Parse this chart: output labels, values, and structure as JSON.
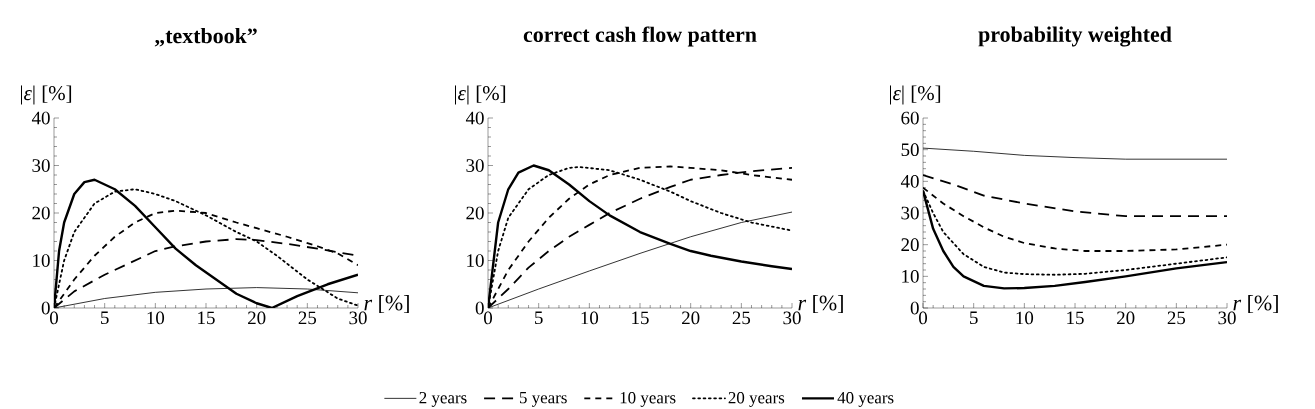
{
  "chart_data": [
    {
      "type": "line",
      "title": "„textbook”",
      "xlabel": "*r* [%]",
      "ylabel": "|*ε*| [%]",
      "xlim": [
        0,
        30
      ],
      "ylim": [
        0,
        40
      ],
      "xticks": [
        0,
        5,
        10,
        15,
        20,
        25,
        30
      ],
      "yticks": [
        0,
        10,
        20,
        30,
        40
      ],
      "series": [
        {
          "color": "#000000",
          "line_style": "solid",
          "x": [
            0,
            5,
            10,
            15,
            20,
            25,
            30
          ],
          "values": [
            0,
            2,
            3.3,
            4,
            4.3,
            4,
            3.2
          ]
        },
        {
          "color": "#000000",
          "line_style": "dashed",
          "x": [
            0,
            2,
            5,
            8,
            10,
            12,
            15,
            18,
            20,
            23,
            26,
            30
          ],
          "values": [
            0,
            3.5,
            7,
            10,
            12,
            13,
            14,
            14.5,
            14.3,
            13.5,
            12.5,
            11
          ]
        },
        {
          "color": "#000000",
          "line_style": "dashed",
          "x": [
            0,
            2,
            4,
            6,
            8,
            10,
            12,
            15,
            18,
            20,
            23,
            26,
            28,
            30
          ],
          "values": [
            0,
            6,
            11,
            15,
            18,
            20,
            20.5,
            20,
            18,
            16.8,
            15,
            13,
            11.5,
            9
          ]
        },
        {
          "color": "#000000",
          "line_style": "dotted",
          "x": [
            0,
            1,
            2,
            4,
            6,
            8,
            10,
            12,
            15,
            18,
            20,
            22,
            25,
            28,
            30
          ],
          "values": [
            0,
            10,
            16,
            22,
            24.5,
            25,
            24,
            22.5,
            19.5,
            16,
            14,
            11,
            6,
            2,
            0.5
          ]
        },
        {
          "color": "#000000",
          "line_style": "solid",
          "x": [
            0,
            0.5,
            1,
            2,
            3,
            4,
            6,
            8,
            10,
            12,
            14,
            16,
            18,
            20,
            21.5,
            24,
            27,
            30
          ],
          "values": [
            0,
            12,
            18,
            24,
            26.5,
            27,
            25,
            21.5,
            17,
            12.5,
            9,
            6,
            3,
            1,
            0,
            2.5,
            5,
            7
          ]
        }
      ]
    },
    {
      "type": "line",
      "title": "correct cash flow pattern",
      "xlabel": "*r* [%]",
      "ylabel": "|*ε*| [%]",
      "xlim": [
        0,
        30
      ],
      "ylim": [
        0,
        40
      ],
      "xticks": [
        0,
        5,
        10,
        15,
        20,
        25,
        30
      ],
      "yticks": [
        0,
        10,
        20,
        30,
        40
      ],
      "legend": "bottom",
      "series": [
        {
          "name": "2 years",
          "color": "#000000",
          "line_style": "solid",
          "x": [
            0,
            5,
            10,
            15,
            20,
            25,
            30
          ],
          "values": [
            0,
            4,
            7.8,
            11.5,
            15,
            18,
            20.2
          ]
        },
        {
          "name": "5 years",
          "color": "#000000",
          "line_style": "dashed",
          "x": [
            0,
            2,
            4,
            6,
            8,
            10,
            12,
            15,
            18,
            20,
            23,
            26,
            30
          ],
          "values": [
            0,
            4,
            8.5,
            12,
            15,
            17.5,
            20,
            23,
            25.5,
            27,
            28,
            28.8,
            29.5
          ]
        },
        {
          "name": "10 years",
          "color": "#000000",
          "line_style": "dashed",
          "x": [
            0,
            2,
            4,
            6,
            8,
            10,
            12,
            15,
            18,
            20,
            23,
            26,
            30
          ],
          "values": [
            0,
            8,
            14,
            19,
            23,
            26,
            28,
            29.5,
            29.8,
            29.5,
            29,
            28,
            27
          ]
        },
        {
          "name": "20 years",
          "color": "#000000",
          "line_style": "dotted",
          "x": [
            0,
            1,
            2,
            4,
            6,
            8,
            9,
            12,
            15,
            18,
            20,
            23,
            26,
            30
          ],
          "values": [
            0,
            12,
            19,
            25,
            28,
            29.5,
            29.7,
            29,
            27,
            24.5,
            22.5,
            20,
            18,
            16.3
          ]
        },
        {
          "name": "40 years",
          "color": "#000000",
          "line_style": "solid",
          "x": [
            0,
            1,
            2,
            3,
            4.5,
            6,
            8,
            10,
            12,
            15,
            18,
            20,
            22,
            25,
            28,
            30
          ],
          "values": [
            0,
            18,
            25,
            28.5,
            30,
            29,
            26,
            22.5,
            19.5,
            16,
            13.5,
            12,
            11,
            9.8,
            8.8,
            8.2
          ]
        }
      ]
    },
    {
      "type": "line",
      "title": "probability weighted",
      "xlabel": "*r* [%]",
      "ylabel": "|*ε*| [%]",
      "xlim": [
        0,
        30
      ],
      "ylim": [
        0,
        60
      ],
      "xticks": [
        0,
        5,
        10,
        15,
        20,
        25,
        30
      ],
      "yticks": [
        0,
        10,
        20,
        30,
        40,
        50,
        60
      ],
      "series": [
        {
          "color": "#000000",
          "line_style": "solid",
          "x": [
            0,
            5,
            10,
            15,
            20,
            25,
            30
          ],
          "values": [
            50.5,
            49.5,
            48.2,
            47.5,
            47,
            47,
            47
          ]
        },
        {
          "color": "#000000",
          "line_style": "dashed",
          "x": [
            0,
            3,
            6,
            10,
            15,
            20,
            25,
            30
          ],
          "values": [
            42,
            39,
            35.5,
            33,
            30.5,
            29,
            29,
            29
          ]
        },
        {
          "color": "#000000",
          "line_style": "dashed",
          "x": [
            0,
            2,
            4,
            6,
            8,
            10,
            13,
            16,
            20,
            25,
            30
          ],
          "values": [
            38,
            33,
            29,
            25.5,
            22.5,
            20.5,
            18.8,
            18,
            18,
            18.5,
            20
          ]
        },
        {
          "color": "#000000",
          "line_style": "dotted",
          "x": [
            0,
            1,
            2,
            4,
            6,
            8,
            10,
            13,
            16,
            20,
            25,
            30
          ],
          "values": [
            37,
            30,
            24,
            17,
            13,
            11.2,
            10.7,
            10.5,
            10.8,
            12,
            14,
            16
          ]
        },
        {
          "color": "#000000",
          "line_style": "solid",
          "x": [
            0,
            1,
            2,
            3,
            4,
            6,
            8,
            10,
            13,
            16,
            20,
            25,
            30
          ],
          "values": [
            37,
            25,
            18,
            13,
            10,
            7,
            6.2,
            6.3,
            7,
            8.2,
            10,
            12.5,
            14.5
          ]
        }
      ]
    }
  ]
}
